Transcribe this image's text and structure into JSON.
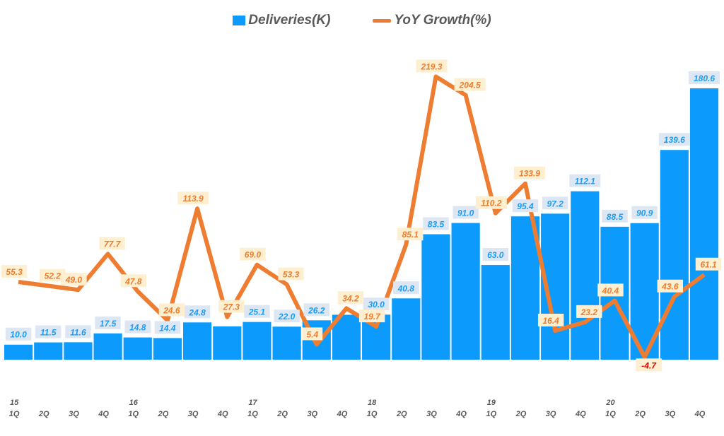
{
  "chart_data": {
    "type": "bar+line",
    "legend_position": "top",
    "categories": [
      "1Q",
      "2Q",
      "3Q",
      "4Q",
      "1Q",
      "2Q",
      "3Q",
      "4Q",
      "1Q",
      "2Q",
      "3Q",
      "4Q",
      "1Q",
      "2Q",
      "3Q",
      "4Q",
      "1Q",
      "2Q",
      "3Q",
      "4Q",
      "1Q",
      "2Q",
      "3Q",
      "4Q"
    ],
    "year_labels": {
      "0": "15",
      "4": "16",
      "8": "17",
      "12": "18",
      "16": "19",
      "20": "20"
    },
    "series": [
      {
        "name": "Deliveries(K)",
        "type": "bar",
        "color": "#0c9bfc",
        "values": [
          10.0,
          11.5,
          11.6,
          17.5,
          14.8,
          14.4,
          24.8,
          22.2,
          25.1,
          22.0,
          26.2,
          29.9,
          30.0,
          40.8,
          83.5,
          91.0,
          63.0,
          95.4,
          97.2,
          112.1,
          88.5,
          90.9,
          139.6,
          180.6
        ],
        "labels": [
          "10.0",
          "11.5",
          "11.6",
          "17.5",
          "14.8",
          "14.4",
          "24.8",
          null,
          "25.1",
          "22.0",
          "26.2",
          null,
          "30.0",
          "40.8",
          "83.5",
          "91.0",
          "63.0",
          "95.4",
          "97.2",
          "112.1",
          "88.5",
          "90.9",
          "139.6",
          "180.6"
        ]
      },
      {
        "name": "YoY Growth(%)",
        "type": "line",
        "color": "#ee7d31",
        "values": [
          55.3,
          52.2,
          49.0,
          77.7,
          47.8,
          24.6,
          113.9,
          27.3,
          69.0,
          53.3,
          5.4,
          34.2,
          19.7,
          85.1,
          219.3,
          204.5,
          110.2,
          133.9,
          16.4,
          23.2,
          40.4,
          -4.7,
          43.6,
          61.1
        ],
        "labels": [
          "55.3",
          "52.2",
          "49.0",
          "77.7",
          "47.8",
          "24.6",
          "113.9",
          "27.3",
          "69.0",
          "53.3",
          "5.4",
          "34.2",
          "19.7",
          "85.1",
          "219.3",
          "204.5",
          "110.2",
          "133.9",
          "16.4",
          "23.2",
          "40.4",
          "-4.7",
          "43.6",
          "61.1"
        ]
      }
    ],
    "negative_label_color": "#e00000",
    "grid": false
  }
}
